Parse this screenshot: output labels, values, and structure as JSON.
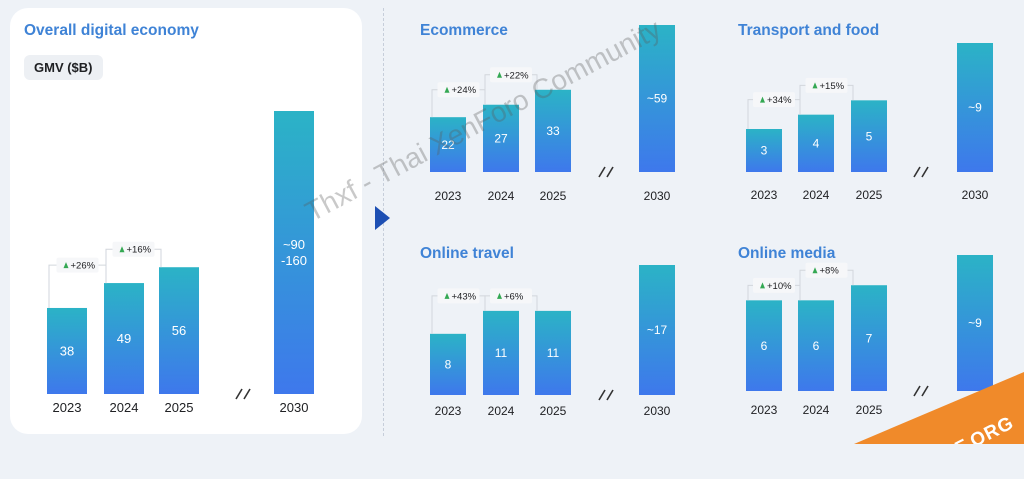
{
  "colors": {
    "bar_top": "#2bb3c6",
    "bar_bottom": "#3e78ec",
    "title": "#3f83d6",
    "growth_arrow": "#34a853",
    "divider": "#c6ceda",
    "panel_arrow": "#1d4fb3"
  },
  "main_panel": {
    "title": "Overall digital economy",
    "metric": "GMV ($B)"
  },
  "watermark": "Thxf - Thai XenForo Community",
  "logo": "THXF.ORG",
  "chart_data": [
    {
      "type": "bar",
      "title": "Overall digital economy",
      "ylabel": "GMV ($B)",
      "categories": [
        "2023",
        "2024",
        "2025",
        "2030"
      ],
      "values": [
        38,
        49,
        56,
        125
      ],
      "value_labels": [
        "38",
        "49",
        "56",
        "~90\n-160"
      ],
      "axis_break_before": "2030",
      "growth": [
        {
          "from": "2023",
          "to": "2024",
          "label": "+26%"
        },
        {
          "from": "2024",
          "to": "2025",
          "label": "+16%"
        }
      ]
    },
    {
      "type": "bar",
      "title": "Ecommerce",
      "categories": [
        "2023",
        "2024",
        "2025",
        "2030"
      ],
      "values": [
        22,
        27,
        33,
        59
      ],
      "value_labels": [
        "22",
        "27",
        "33",
        "~59"
      ],
      "axis_break_before": "2030",
      "growth": [
        {
          "from": "2023",
          "to": "2024",
          "label": "+24%"
        },
        {
          "from": "2024",
          "to": "2025",
          "label": "+22%"
        }
      ]
    },
    {
      "type": "bar",
      "title": "Transport and food",
      "categories": [
        "2023",
        "2024",
        "2025",
        "2030"
      ],
      "values": [
        3,
        4,
        5,
        9
      ],
      "value_labels": [
        "3",
        "4",
        "5",
        "~9"
      ],
      "axis_break_before": "2030",
      "growth": [
        {
          "from": "2023",
          "to": "2024",
          "label": "+34%"
        },
        {
          "from": "2024",
          "to": "2025",
          "label": "+15%"
        }
      ]
    },
    {
      "type": "bar",
      "title": "Online travel",
      "categories": [
        "2023",
        "2024",
        "2025",
        "2030"
      ],
      "values": [
        8,
        11,
        11,
        17
      ],
      "value_labels": [
        "8",
        "11",
        "11",
        "~17"
      ],
      "axis_break_before": "2030",
      "growth": [
        {
          "from": "2023",
          "to": "2024",
          "label": "+43%"
        },
        {
          "from": "2024",
          "to": "2025",
          "label": "+6%"
        }
      ]
    },
    {
      "type": "bar",
      "title": "Online media",
      "categories": [
        "2023",
        "2024",
        "2025",
        "2030"
      ],
      "values": [
        6,
        6,
        7,
        9
      ],
      "value_labels": [
        "6",
        "6",
        "7",
        "~9"
      ],
      "axis_break_before": "2030",
      "growth": [
        {
          "from": "2023",
          "to": "2024",
          "label": "+10%"
        },
        {
          "from": "2024",
          "to": "2025",
          "label": "+8%"
        }
      ]
    }
  ]
}
